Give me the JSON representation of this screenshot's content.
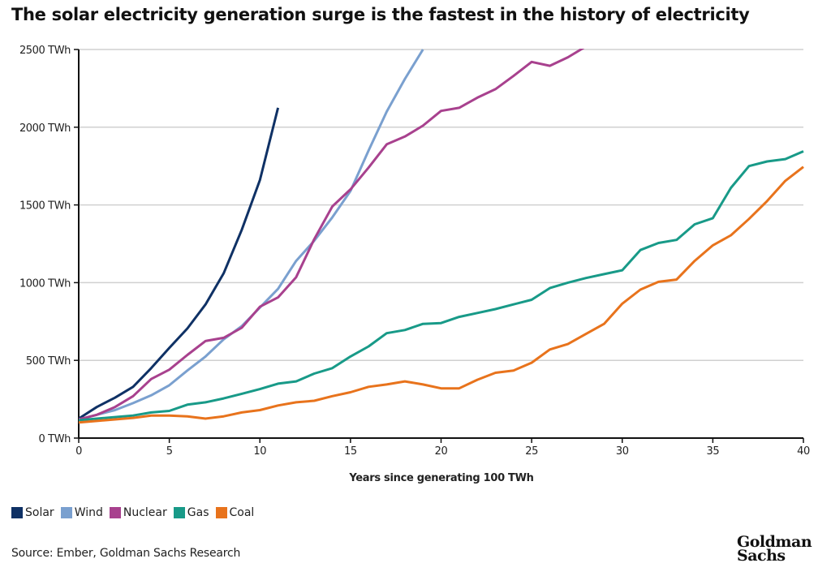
{
  "chart_data": {
    "type": "line",
    "title": "The solar electricity generation surge is the fastest in the history of electricity",
    "xlabel": "Years since generating 100 TWh",
    "ylabel": "",
    "xlim": [
      0,
      40
    ],
    "ylim": [
      0,
      2500
    ],
    "x_ticks": [
      0,
      5,
      10,
      15,
      20,
      25,
      30,
      35,
      40
    ],
    "x_tick_labels": [
      "0",
      "5",
      "10",
      "15",
      "20",
      "25",
      "30",
      "35",
      "40"
    ],
    "y_ticks": [
      0,
      500,
      1000,
      1500,
      2000,
      2500
    ],
    "y_tick_labels": [
      "0 TWh",
      "500 TWh",
      "1000 TWh",
      "1500 TWh",
      "2000 TWh",
      "2500 TWh"
    ],
    "grid": "horizontal",
    "legend_position": "bottom-left",
    "series": [
      {
        "name": "Solar",
        "color": "#0f3165",
        "x": [
          0,
          1,
          2,
          3,
          4,
          5,
          6,
          7,
          8,
          9,
          10,
          11
        ],
        "values": [
          125,
          200,
          260,
          330,
          450,
          580,
          705,
          860,
          1060,
          1340,
          1660,
          2125
        ]
      },
      {
        "name": "Wind",
        "color": "#7aa0cf",
        "x": [
          0,
          1,
          2,
          3,
          4,
          5,
          6,
          7,
          8,
          9,
          10,
          11,
          12,
          13,
          14,
          15,
          16,
          17,
          18,
          19
        ],
        "values": [
          120,
          150,
          180,
          225,
          275,
          340,
          435,
          525,
          635,
          720,
          840,
          960,
          1140,
          1270,
          1420,
          1590,
          1850,
          2100,
          2310,
          2500
        ]
      },
      {
        "name": "Nuclear",
        "color": "#a8418e",
        "x": [
          0,
          1,
          2,
          3,
          4,
          5,
          6,
          7,
          8,
          9,
          10,
          11,
          12,
          13,
          14,
          15,
          16,
          17,
          18,
          19,
          20,
          21,
          22,
          23,
          24,
          25,
          26,
          27,
          28
        ],
        "values": [
          120,
          150,
          200,
          270,
          380,
          440,
          535,
          625,
          645,
          710,
          845,
          905,
          1035,
          1280,
          1490,
          1600,
          1740,
          1890,
          1940,
          2010,
          2105,
          2125,
          2190,
          2245,
          2330,
          2420,
          2395,
          2450,
          2520
        ]
      },
      {
        "name": "Gas",
        "color": "#189a88",
        "x": [
          0,
          1,
          2,
          3,
          4,
          5,
          6,
          7,
          8,
          9,
          10,
          11,
          12,
          13,
          14,
          15,
          16,
          17,
          18,
          19,
          20,
          21,
          22,
          23,
          24,
          25,
          26,
          27,
          28,
          29,
          30,
          31,
          32,
          33,
          34,
          35,
          36,
          37,
          38,
          39,
          40
        ],
        "values": [
          115,
          125,
          135,
          145,
          165,
          175,
          215,
          230,
          255,
          285,
          315,
          350,
          365,
          415,
          450,
          525,
          590,
          675,
          695,
          735,
          740,
          780,
          805,
          830,
          860,
          890,
          965,
          1000,
          1030,
          1055,
          1080,
          1210,
          1255,
          1275,
          1375,
          1415,
          1610,
          1750,
          1780,
          1795,
          1845
        ]
      },
      {
        "name": "Coal",
        "color": "#e8731c",
        "x": [
          0,
          1,
          2,
          3,
          4,
          5,
          6,
          7,
          8,
          9,
          10,
          11,
          12,
          13,
          14,
          15,
          16,
          17,
          18,
          19,
          20,
          21,
          22,
          23,
          24,
          25,
          26,
          27,
          28,
          29,
          30,
          31,
          32,
          33,
          34,
          35,
          36,
          37,
          38,
          39,
          40
        ],
        "values": [
          100,
          110,
          120,
          130,
          145,
          145,
          140,
          125,
          140,
          165,
          180,
          210,
          230,
          240,
          270,
          295,
          330,
          345,
          365,
          345,
          320,
          320,
          375,
          420,
          435,
          485,
          570,
          605,
          670,
          735,
          865,
          955,
          1005,
          1020,
          1140,
          1240,
          1305,
          1410,
          1525,
          1655,
          1745
        ]
      }
    ]
  },
  "legend": {
    "items": [
      {
        "label": "Solar",
        "color": "#0f3165"
      },
      {
        "label": "Wind",
        "color": "#7aa0cf"
      },
      {
        "label": "Nuclear",
        "color": "#a8418e"
      },
      {
        "label": "Gas",
        "color": "#189a88"
      },
      {
        "label": "Coal",
        "color": "#e8731c"
      }
    ]
  },
  "footer": {
    "source": "Source: Ember, Goldman Sachs Research",
    "logo_line1": "Goldman",
    "logo_line2": "Sachs"
  }
}
